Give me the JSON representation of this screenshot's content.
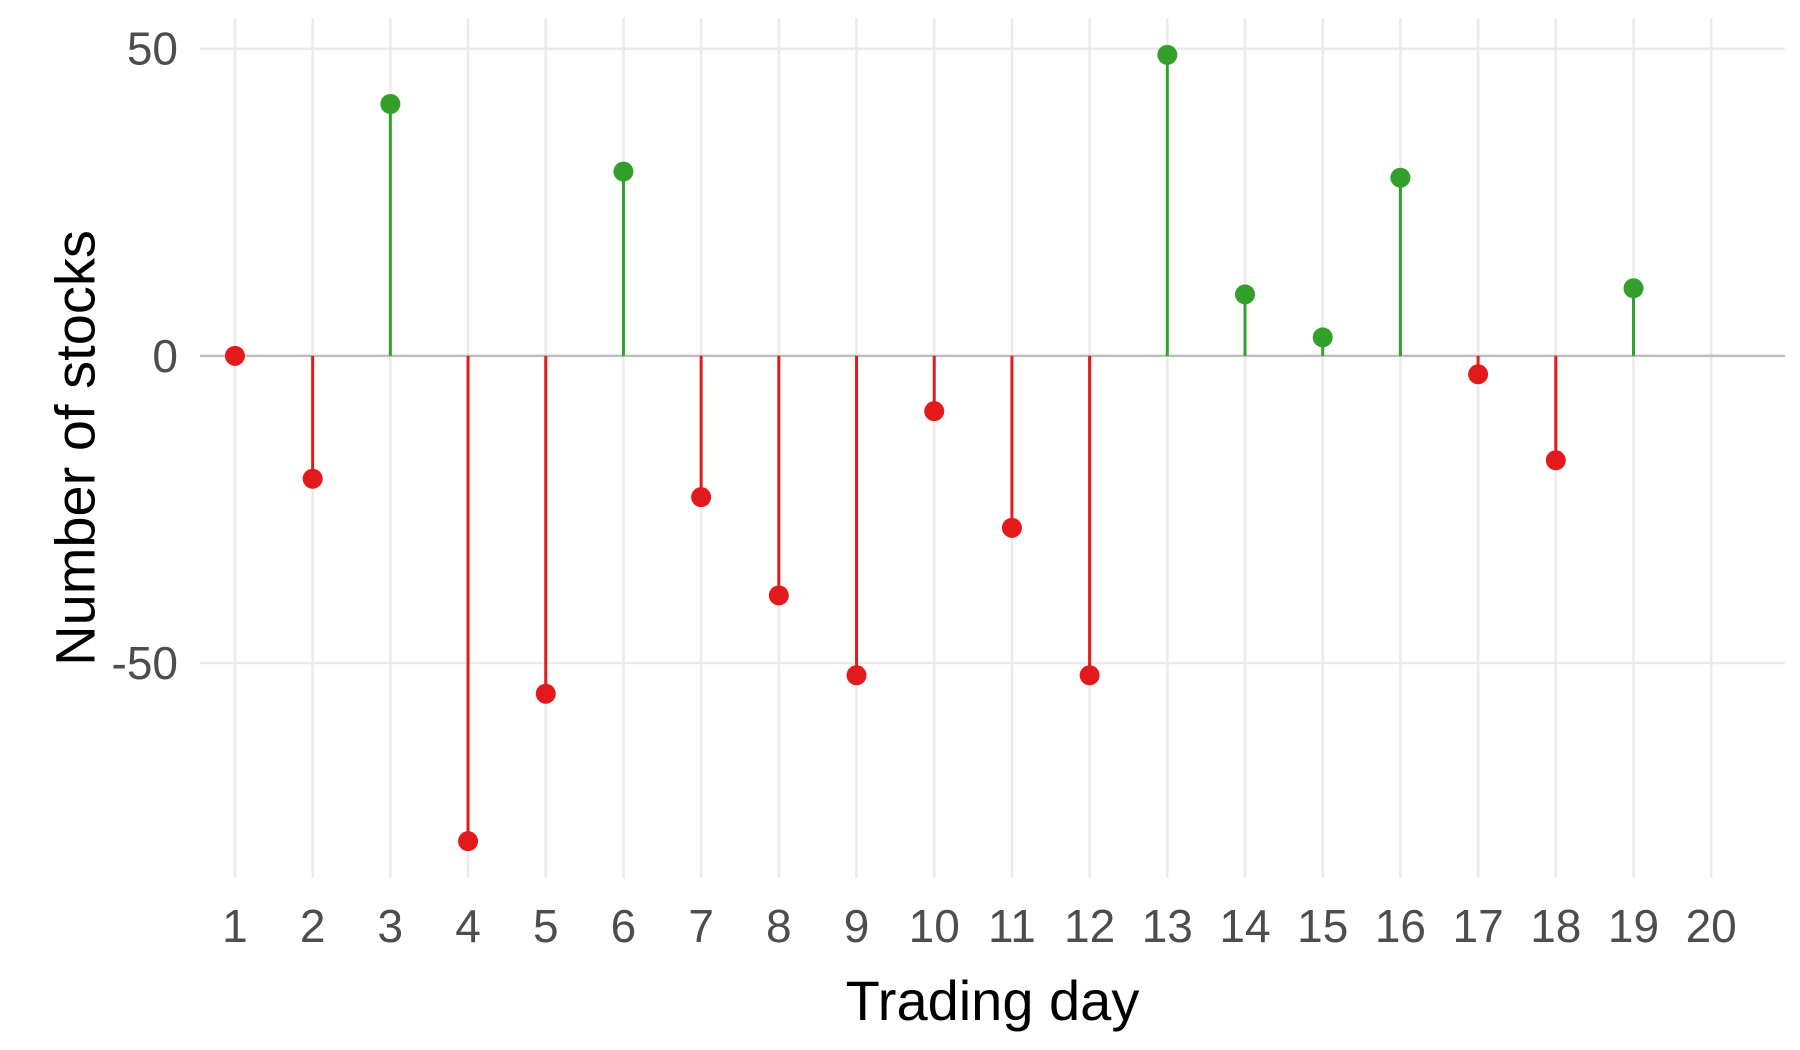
{
  "chart_data": {
    "type": "lollipop",
    "title": "",
    "xlabel": "Trading day",
    "ylabel": "Number of stocks",
    "x": [
      1,
      2,
      3,
      4,
      5,
      6,
      7,
      8,
      9,
      10,
      11,
      12,
      13,
      14,
      15,
      16,
      17,
      18,
      19
    ],
    "values": [
      0,
      -20,
      41,
      -79,
      -55,
      30,
      -23,
      -39,
      -52,
      -9,
      -28,
      -52,
      49,
      10,
      3,
      29,
      -3,
      -17,
      11
    ],
    "x_ticks": [
      "1",
      "2",
      "3",
      "4",
      "5",
      "6",
      "7",
      "8",
      "9",
      "10",
      "11",
      "12",
      "13",
      "14",
      "15",
      "16",
      "17",
      "18",
      "19",
      "20"
    ],
    "y_ticks": [
      "50",
      "0",
      "-50"
    ],
    "xlim": [
      0.55,
      20.95
    ],
    "ylim": [
      -85,
      55
    ],
    "grid": true,
    "legend": "none",
    "colors": {
      "positive": "#33a02c",
      "negative": "#e31a1c",
      "grid": "#ebebeb",
      "zero_line": "#bebebe"
    }
  }
}
